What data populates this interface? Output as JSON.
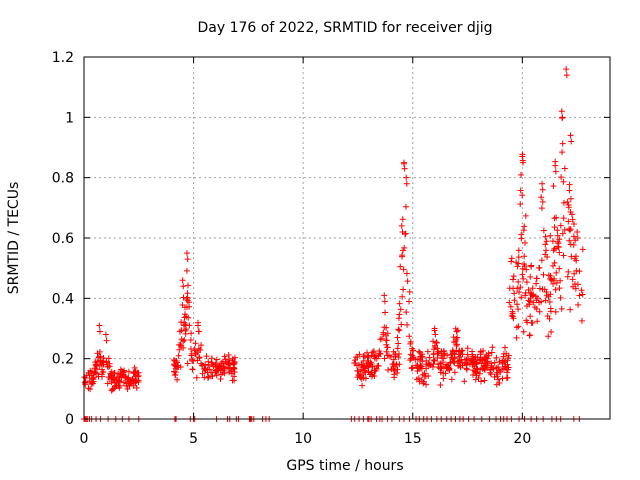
{
  "chart_data": {
    "type": "scatter",
    "title": "Day 176 of 2022, SRMTID for receiver djig",
    "xlabel": "GPS time / hours",
    "ylabel": "SRMTID / TECUs",
    "xlim": [
      0,
      24
    ],
    "ylim": [
      0,
      1.2
    ],
    "xticks": [
      0,
      5,
      10,
      15,
      20
    ],
    "xtick_labels": [
      "0",
      "5",
      "10",
      "15",
      "20"
    ],
    "yticks": [
      0,
      0.2,
      0.4,
      0.6,
      0.8,
      1.0,
      1.2
    ],
    "ytick_labels": [
      "0",
      "0.2",
      "0.4",
      "0.6",
      "0.8",
      "1",
      "1.2"
    ],
    "grid": true,
    "marker": "plus",
    "color": "#ff0000",
    "series": [
      {
        "name": "SRMTID",
        "clusters": [
          {
            "x_start": 0.0,
            "x_end": 2.5,
            "y_base": 0.13,
            "y_spread": 0.05,
            "y_peaks": [
              [
                0.7,
                0.31
              ],
              [
                1.0,
                0.28
              ]
            ]
          },
          {
            "x_start": 4.1,
            "x_end": 6.9,
            "y_base": 0.17,
            "y_spread": 0.06,
            "y_peaks": [
              [
                4.7,
                0.55
              ],
              [
                4.5,
                0.46
              ],
              [
                5.2,
                0.31
              ]
            ]
          },
          {
            "x_start": 12.3,
            "x_end": 19.4,
            "y_base": 0.18,
            "y_spread": 0.08,
            "y_peaks": [
              [
                13.7,
                0.41
              ],
              [
                14.6,
                0.85
              ],
              [
                14.7,
                0.8
              ],
              [
                14.5,
                0.64
              ],
              [
                16.0,
                0.3
              ],
              [
                17.0,
                0.29
              ]
            ]
          },
          {
            "x_start": 19.4,
            "x_end": 22.8,
            "y_base": 0.4,
            "y_spread": 0.2,
            "y_peaks": [
              [
                20.0,
                0.87
              ],
              [
                20.9,
                0.78
              ],
              [
                21.5,
                0.84
              ],
              [
                21.8,
                1.02
              ],
              [
                22.0,
                1.16
              ],
              [
                22.2,
                0.94
              ],
              [
                22.5,
                0.62
              ]
            ]
          }
        ],
        "zeros": [
          0.0,
          0.05,
          0.1,
          0.15,
          0.25,
          0.35,
          0.55,
          0.75,
          1.1,
          1.45,
          1.75,
          2.05,
          2.5,
          4.15,
          4.2,
          4.85,
          5.0,
          5.05,
          6.05,
          6.55,
          6.65,
          6.95,
          7.05,
          7.55,
          7.6,
          7.65,
          7.75,
          8.15,
          8.3,
          8.45,
          12.2,
          12.35,
          12.55,
          12.75,
          12.95,
          13.0,
          13.1,
          13.35,
          13.5,
          13.6,
          13.85,
          14.05,
          14.4,
          14.6,
          14.85,
          15.15,
          15.3,
          15.5,
          15.65,
          15.85,
          16.1,
          16.3,
          16.55,
          16.75,
          16.95,
          17.15,
          17.3,
          17.55,
          17.8,
          18.15,
          18.5,
          18.8,
          19.0,
          19.15,
          19.3,
          19.5,
          19.85,
          20.1,
          20.4,
          20.65,
          20.95,
          21.35,
          21.55,
          21.75,
          22.35,
          22.6
        ]
      }
    ]
  }
}
